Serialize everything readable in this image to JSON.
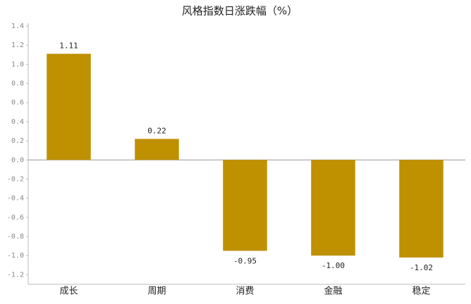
{
  "chart_data": {
    "type": "bar",
    "title": "风格指数日涨跌幅（%）",
    "categories": [
      "成长",
      "周期",
      "消费",
      "金融",
      "稳定"
    ],
    "values": [
      1.11,
      0.22,
      -0.95,
      -1.0,
      -1.02
    ],
    "value_labels": [
      "1.11",
      "0.22",
      "-0.95",
      "-1.00",
      "-1.02"
    ],
    "color": "#bf9000",
    "ylim": [
      -1.3,
      1.4
    ],
    "yticks": [
      1.4,
      1.2,
      {
        "value": 1.0,
        "label": "1.0"
      },
      0.8,
      0.6,
      0.4,
      0.2,
      {
        "value": 0,
        "label": "0.0"
      },
      -0.2,
      -0.4,
      -0.6,
      -0.8,
      {
        "value": -1.0,
        "label": "-1.0"
      },
      -1.2
    ],
    "grid": false
  }
}
